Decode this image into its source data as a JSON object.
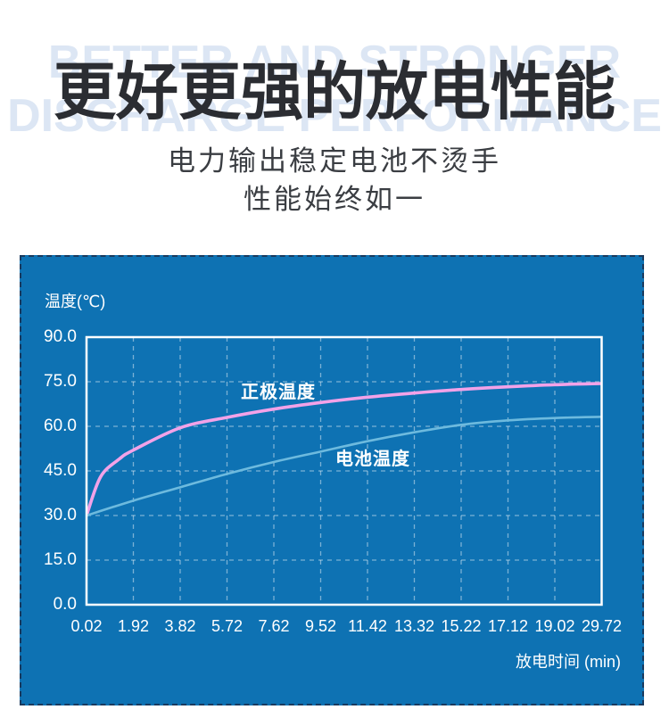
{
  "page": {
    "background": "#ffffff"
  },
  "header": {
    "watermark_line1": "BETTER AND STRONGER",
    "watermark_line2": "DISCHARGE PERFORMANCE",
    "watermark_color": "#dce6f4",
    "title": "更好更强的放电性能",
    "title_color": "#2b2d32",
    "subtitle_line1": "电力输出稳定电池不烫手",
    "subtitle_line2": "性能始终如一"
  },
  "panel": {
    "background": "#0e72b3",
    "border_color": "#1a3a5e",
    "axis_color": "#ffffff",
    "grid_color": "rgba(255,255,255,0.45)"
  },
  "chart_data": {
    "type": "line",
    "title": "",
    "y_axis_title": "温度(℃)",
    "x_axis_title": "放电时间 (min)",
    "ylim": [
      0,
      90
    ],
    "y_ticks": [
      0,
      15,
      30,
      45,
      60,
      75,
      90
    ],
    "y_tick_labels": [
      "0.0",
      "15.0",
      "30.0",
      "45.0",
      "60.0",
      "75.0",
      "90.0"
    ],
    "x_tick_labels": [
      "0.02",
      "1.92",
      "3.82",
      "5.72",
      "7.62",
      "9.52",
      "11.42",
      "13.32",
      "15.22",
      "17.12",
      "19.02",
      "29.72"
    ],
    "x_unit": "min (ticks evenly spaced, values given by x_tick_labels index)",
    "grid": "dashed",
    "legend_position": "inline-labels",
    "series": [
      {
        "name": "正极温度",
        "color": "#f2a2e8",
        "stroke_width": 3.6,
        "points": [
          [
            0,
            30
          ],
          [
            0.3,
            43
          ],
          [
            0.7,
            49
          ],
          [
            1,
            52
          ],
          [
            2,
            59.5
          ],
          [
            3,
            63
          ],
          [
            4,
            65.8
          ],
          [
            5,
            68
          ],
          [
            6,
            69.8
          ],
          [
            7,
            71.2
          ],
          [
            8,
            72.4
          ],
          [
            9,
            73.3
          ],
          [
            10,
            74
          ],
          [
            11,
            74.4
          ]
        ]
      },
      {
        "name": "电池温度",
        "color": "#6dbade",
        "stroke_width": 2.6,
        "points": [
          [
            0,
            30
          ],
          [
            1,
            35
          ],
          [
            2,
            39.5
          ],
          [
            3,
            44
          ],
          [
            4,
            48
          ],
          [
            5,
            51.5
          ],
          [
            6,
            55
          ],
          [
            7,
            58
          ],
          [
            8,
            60.5
          ],
          [
            9,
            62
          ],
          [
            10,
            62.8
          ],
          [
            11,
            63.2
          ]
        ]
      }
    ]
  }
}
